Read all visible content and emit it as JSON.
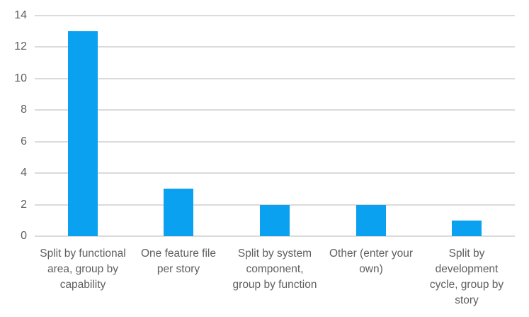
{
  "chart_data": {
    "type": "bar",
    "title": "",
    "xlabel": "",
    "ylabel": "",
    "categories": [
      "Split by functional area, group by capability",
      "One feature file per story",
      "Split by system component, group by function",
      "Other (enter your own)",
      "Split by development cycle, group by story"
    ],
    "values": [
      13,
      3,
      2,
      2,
      1
    ],
    "ylim": [
      0,
      14
    ],
    "yticks": [
      0,
      2,
      4,
      6,
      8,
      10,
      12,
      14
    ],
    "grid": true,
    "legend_position": "none",
    "colors": {
      "bar": "#0AA1F1",
      "gridline": "#DBDBDB",
      "tick_label": "#5F5F5F",
      "background": "#FFFFFF"
    }
  }
}
